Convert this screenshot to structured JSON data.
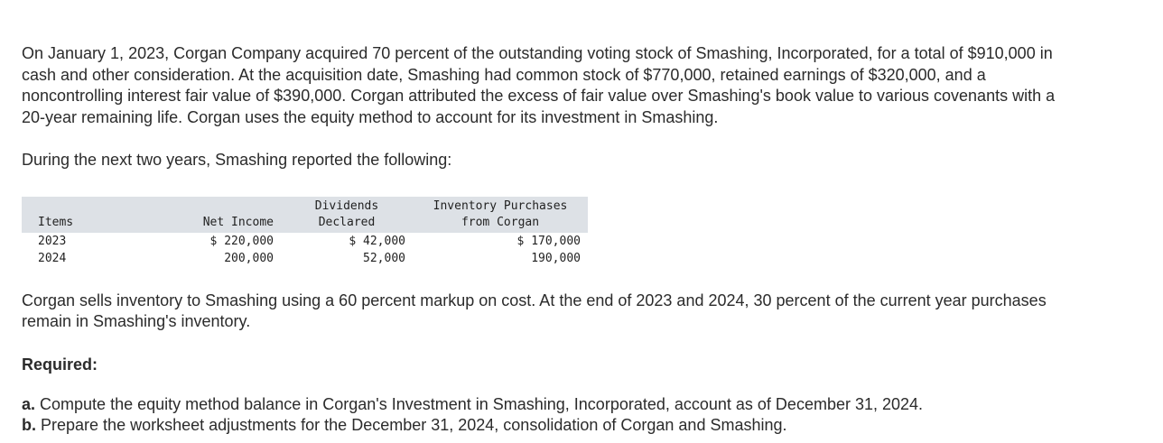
{
  "intro": "On January 1, 2023, Corgan Company acquired 70 percent of the outstanding voting stock of Smashing, Incorporated, for a total of $910,000 in cash and other consideration. At the acquisition date, Smashing had common stock of $770,000, retained earnings of $320,000, and a noncontrolling interest fair value of $390,000. Corgan attributed the excess of fair value over Smashing's book value to various covenants with a 20-year remaining life. Corgan uses the equity method to account for its investment in Smashing.",
  "lead_in": "During the next two years, Smashing reported the following:",
  "table": {
    "headers": {
      "items": "Items",
      "net_income": "Net Income",
      "dividends_line1": "Dividends",
      "dividends_line2": "Declared",
      "inventory_line1": "Inventory Purchases",
      "inventory_line2": "from Corgan"
    },
    "rows": [
      {
        "year": "2023",
        "net_income": "$ 220,000",
        "dividends": "$ 42,000",
        "inventory": "$ 170,000"
      },
      {
        "year": "2024",
        "net_income": "200,000",
        "dividends": "52,000",
        "inventory": "190,000"
      }
    ]
  },
  "markup_text": "Corgan sells inventory to Smashing using a 60 percent markup on cost. At the end of 2023 and 2024, 30 percent of the current year purchases remain in Smashing's inventory.",
  "required_label": "Required:",
  "requirements": [
    {
      "letter": "a.",
      "text": "Compute the equity method balance in Corgan's Investment in Smashing, Incorporated, account as of December 31, 2024."
    },
    {
      "letter": "b.",
      "text": "Prepare the worksheet adjustments for the December 31, 2024, consolidation of Corgan and Smashing."
    }
  ]
}
